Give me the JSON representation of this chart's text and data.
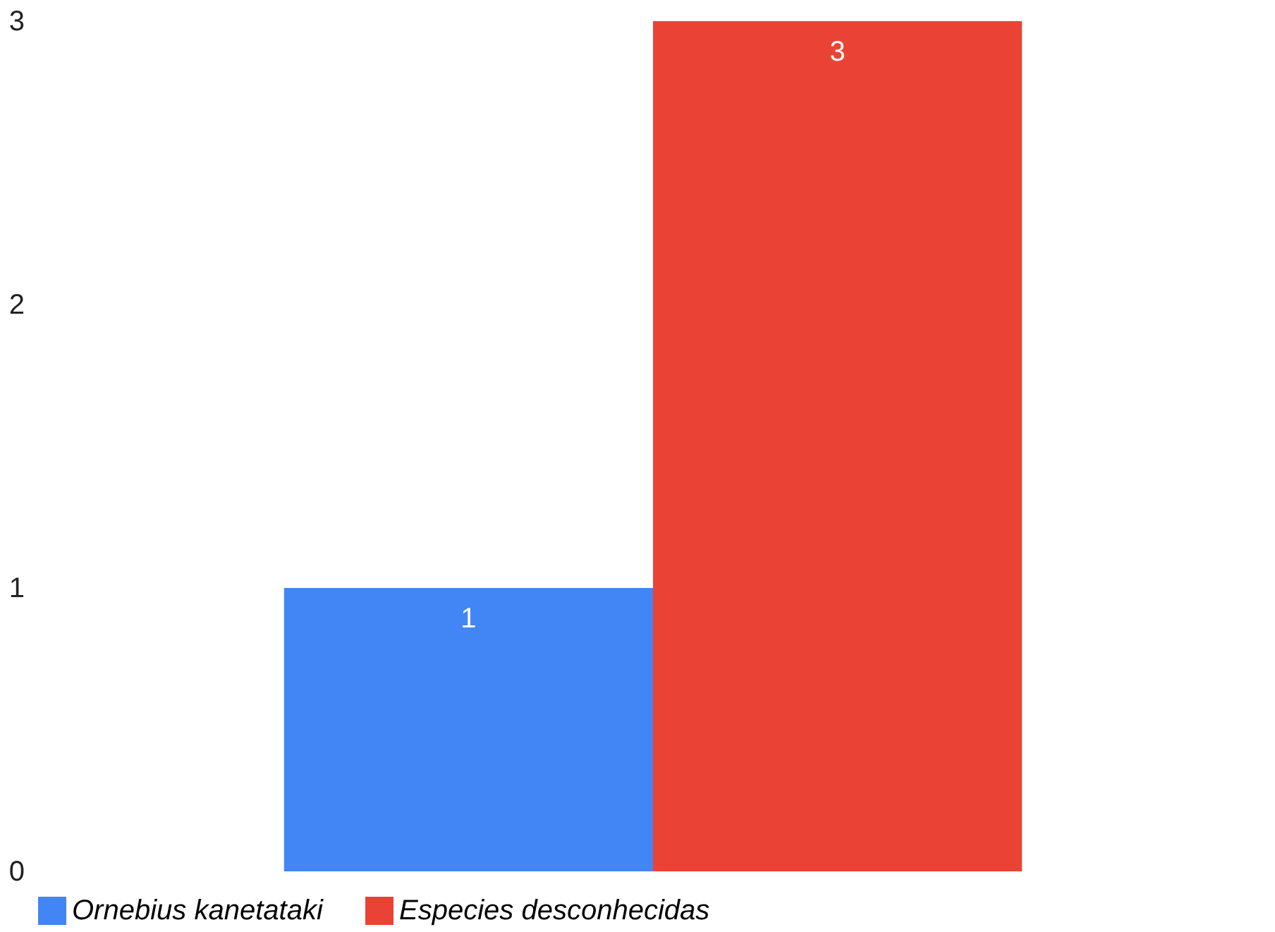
{
  "chart_data": {
    "type": "bar",
    "categories": [
      null
    ],
    "series": [
      {
        "name": "Ornebius kanetataki",
        "color": "#4285f4",
        "values": [
          1
        ]
      },
      {
        "name": "Especies desconhecidas",
        "color": "#ea4335",
        "values": [
          3
        ]
      }
    ],
    "ylim": [
      0,
      3
    ],
    "yticks": [
      0,
      1,
      2,
      3
    ],
    "grid": false,
    "legend": "bottom",
    "data_labels": true,
    "tick_labels": "y"
  }
}
